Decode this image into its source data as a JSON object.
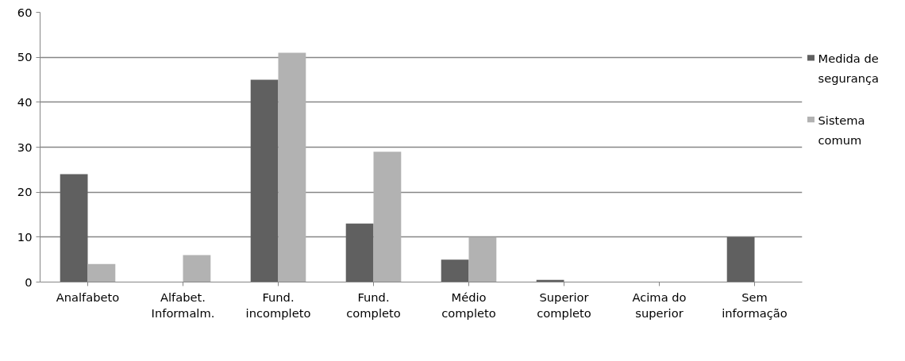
{
  "chart_data": {
    "type": "bar",
    "categories": [
      "Analfabeto",
      "Alfabet. Informalm.",
      "Fund. incompleto",
      "Fund. completo",
      "Médio completo",
      "Superior completo",
      "Acima do superior",
      "Sem informação"
    ],
    "series": [
      {
        "name": "Medida de segurança",
        "color": "#606060",
        "values": [
          24,
          0,
          45,
          13,
          5,
          0.5,
          0,
          10
        ]
      },
      {
        "name": "Sistema comum",
        "color": "#b2b2b2",
        "values": [
          4,
          6,
          51,
          29,
          10,
          0,
          0,
          0
        ]
      }
    ],
    "ylim": [
      0,
      60
    ],
    "yticks": [
      0,
      10,
      20,
      30,
      40,
      50,
      60
    ],
    "grid": "y",
    "legend": "right"
  }
}
